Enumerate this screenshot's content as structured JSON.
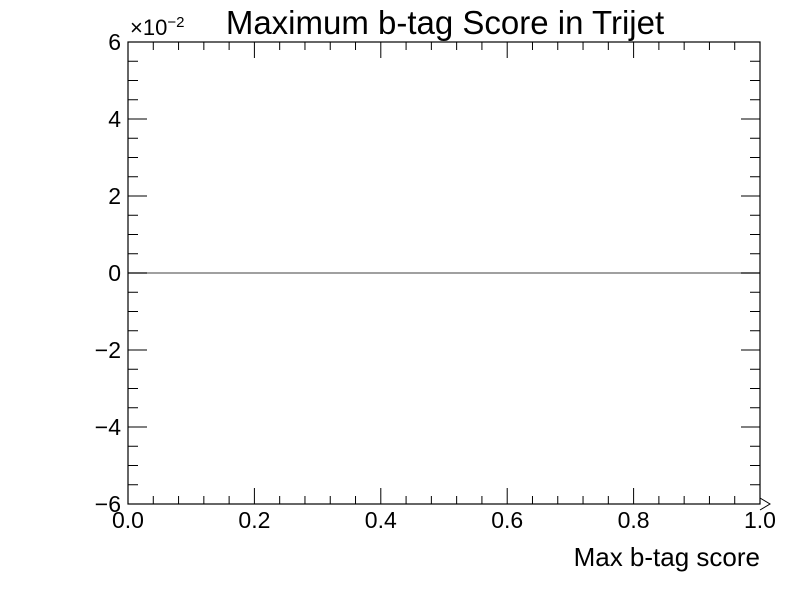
{
  "chart_data": {
    "type": "line",
    "title": "Maximum b-tag Score in Trijet",
    "xlabel": "Max b-tag score",
    "ylabel": "",
    "xlim": [
      0.0,
      1.0
    ],
    "ylim": [
      -0.06,
      0.06
    ],
    "y_multiplier": {
      "base": "×10",
      "exponent": "−2"
    },
    "x_ticks": [
      {
        "value": 0.0,
        "label": "0.0"
      },
      {
        "value": 0.2,
        "label": "0.2"
      },
      {
        "value": 0.4,
        "label": "0.4"
      },
      {
        "value": 0.6,
        "label": "0.6"
      },
      {
        "value": 0.8,
        "label": "0.8"
      },
      {
        "value": 1.0,
        "label": "1.0"
      }
    ],
    "y_ticks": [
      {
        "value": 0.06,
        "label": "6"
      },
      {
        "value": 0.04,
        "label": "4"
      },
      {
        "value": 0.02,
        "label": "2"
      },
      {
        "value": 0.0,
        "label": "0"
      },
      {
        "value": -0.02,
        "label": "−2"
      },
      {
        "value": -0.04,
        "label": "−4"
      },
      {
        "value": -0.06,
        "label": "−6"
      }
    ],
    "series": [
      {
        "x": [
          0.0,
          1.0
        ],
        "values": [
          0.0,
          0.0
        ],
        "color": "#808080"
      }
    ],
    "grid": false,
    "legend": "none"
  }
}
